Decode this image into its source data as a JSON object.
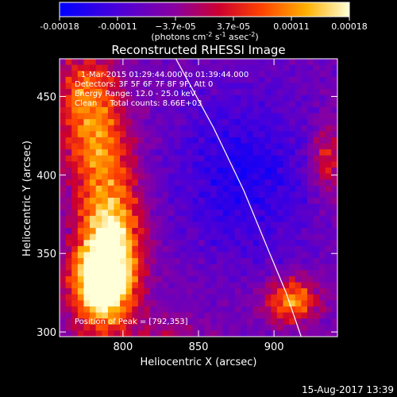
{
  "colorbar": {
    "ticks": [
      "-0.00018",
      "-0.00011",
      "−3.7e-05",
      "3.7e-05",
      "0.00011",
      "0.00018"
    ],
    "units_text": "(photons cm",
    "units_sup1": "-2",
    "units_mid1": " s",
    "units_sup2": "-1",
    "units_mid2": " asec",
    "units_sup3": "-2",
    "units_end": ")"
  },
  "annotations": {
    "time_range": "1-Mar-2015 01:29:44.000 to 01:39:44.000",
    "detectors": "Detectors: 3F 5F 6F 7F 8F 9F, Att 0",
    "energy_range": "Energy Range: 12.0 - 25.0 keV",
    "algorithm_counts": "Clean     Total counts: 8.66E+03",
    "peak_position": "Position of Peak = [792,353]"
  },
  "footer": {
    "timestamp": "15-Aug-2017 13:39"
  },
  "chart_data": {
    "type": "heatmap",
    "title": "Reconstructed RHESSI Image",
    "xlabel": "Heliocentric X (arcsec)",
    "ylabel": "Heliocentric Y (arcsec)",
    "xlim": [
      758,
      942
    ],
    "ylim": [
      297,
      474
    ],
    "x_ticks": [
      800,
      850,
      900
    ],
    "y_ticks": [
      300,
      350,
      400,
      450
    ],
    "colorbar_range": [
      -0.00018,
      0.00018
    ],
    "peak": [
      792,
      353
    ],
    "limb_points": [
      [
        835,
        474
      ],
      [
        860,
        430
      ],
      [
        880,
        390
      ],
      [
        895,
        355
      ],
      [
        908,
        325
      ],
      [
        918,
        297
      ]
    ],
    "emission_sources": [
      {
        "x": 792,
        "y": 355,
        "amplitude": 1.0,
        "sigma_x": 14,
        "sigma_y": 30
      },
      {
        "x": 784,
        "y": 330,
        "amplitude": 0.8,
        "sigma_x": 14,
        "sigma_y": 20
      },
      {
        "x": 782,
        "y": 420,
        "amplitude": 0.6,
        "sigma_x": 16,
        "sigma_y": 24
      },
      {
        "x": 775,
        "y": 455,
        "amplitude": 0.45,
        "sigma_x": 14,
        "sigma_y": 18
      },
      {
        "x": 912,
        "y": 320,
        "amplitude": 0.75,
        "sigma_x": 12,
        "sigma_y": 10
      },
      {
        "x": 935,
        "y": 410,
        "amplitude": 0.45,
        "sigma_x": 8,
        "sigma_y": 16
      },
      {
        "x": 830,
        "y": 300,
        "amplitude": 0.2,
        "sigma_x": 18,
        "sigma_y": 8
      }
    ],
    "negative_region": {
      "x": 880,
      "y": 400,
      "amplitude": -0.35,
      "sigma_x": 35,
      "sigma_y": 40
    }
  }
}
